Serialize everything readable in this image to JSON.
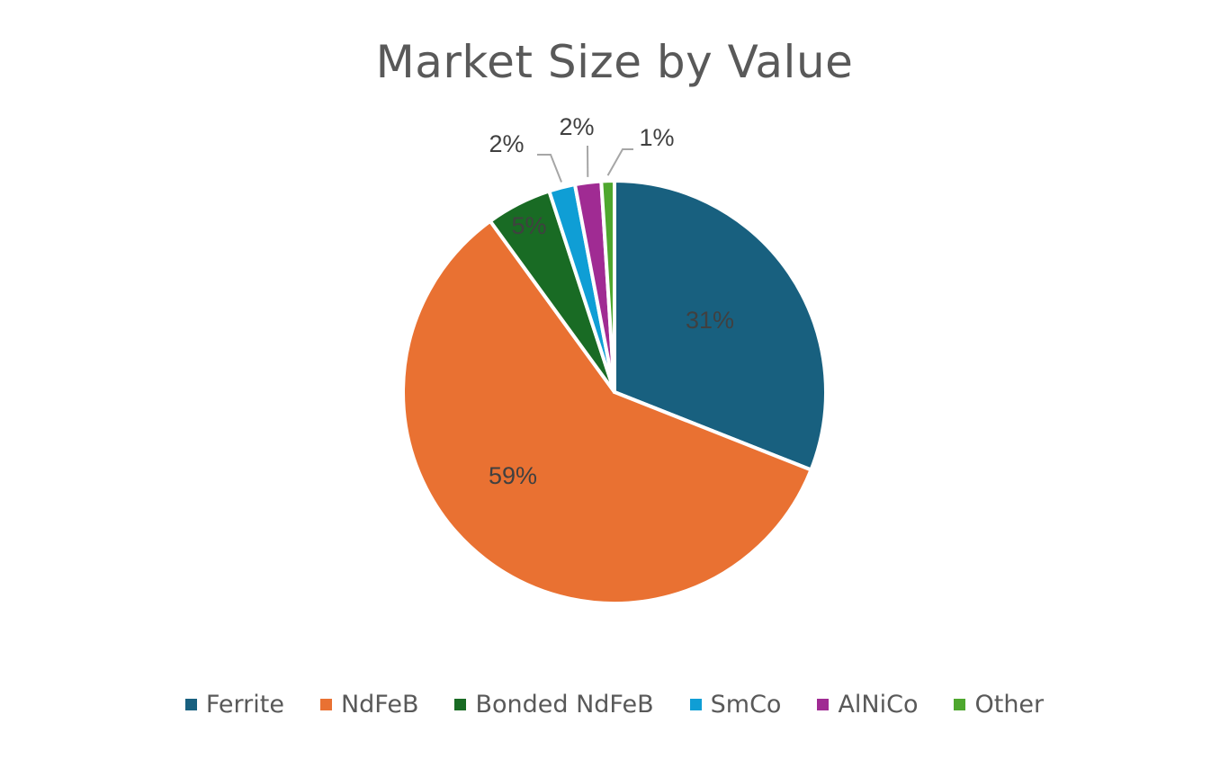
{
  "chart_data": {
    "type": "pie",
    "title": "Market Size by Value",
    "legend_position": "bottom",
    "slices": [
      {
        "name": "Ferrite",
        "value": 31,
        "label": "31%",
        "color": "#18607F"
      },
      {
        "name": "NdFeB",
        "value": 59,
        "label": "59%",
        "color": "#E97132"
      },
      {
        "name": "Bonded NdFeB",
        "value": 5,
        "label": "5%",
        "color": "#196B24"
      },
      {
        "name": "SmCo",
        "value": 2,
        "label": "2%",
        "color": "#0F9ED5"
      },
      {
        "name": "AlNiCo",
        "value": 2,
        "label": "2%",
        "color": "#A02B93"
      },
      {
        "name": "Other",
        "value": 1,
        "label": "1%",
        "color": "#4EA72E"
      }
    ]
  }
}
